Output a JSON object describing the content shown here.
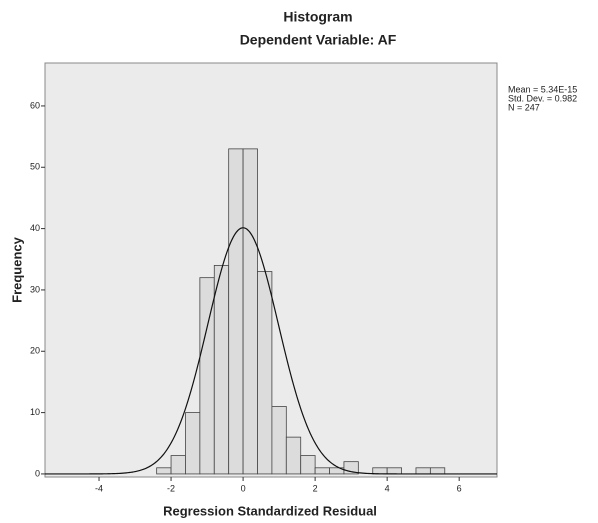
{
  "chart_data": {
    "type": "histogram",
    "title": "Histogram",
    "subtitle": "Dependent Variable: AF",
    "x_label": "Regression Standardized Residual",
    "y_label": "Frequency",
    "bins": [
      -2.4,
      -2.0,
      -1.6,
      -1.2,
      -0.8,
      -0.4,
      0,
      0.4,
      0.8,
      1.2,
      1.6,
      2.0,
      2.4,
      2.8,
      3.2,
      3.6,
      4.0,
      4.4,
      4.8,
      5.2,
      5.6
    ],
    "values": [
      1,
      3,
      10,
      32,
      34,
      53,
      53,
      33,
      11,
      6,
      3,
      1,
      1,
      2,
      0,
      1,
      1,
      0,
      1,
      1
    ],
    "color": "#dcdcdc",
    "xlim": [
      -5.5,
      7.05
    ],
    "xticks": [
      -4,
      -2,
      0,
      2,
      4,
      6
    ],
    "ylim": [
      -0.5,
      67
    ],
    "yticks": [
      0,
      10,
      20,
      30,
      40,
      50,
      60
    ],
    "stats": [
      {
        "value": 5.34e-15,
        "label": "Mean = 5.34E-15"
      },
      {
        "value": 0.982,
        "label": "Std. Dev. = 0.982"
      },
      {
        "value": 247,
        "label": "N = 247"
      }
    ]
  }
}
